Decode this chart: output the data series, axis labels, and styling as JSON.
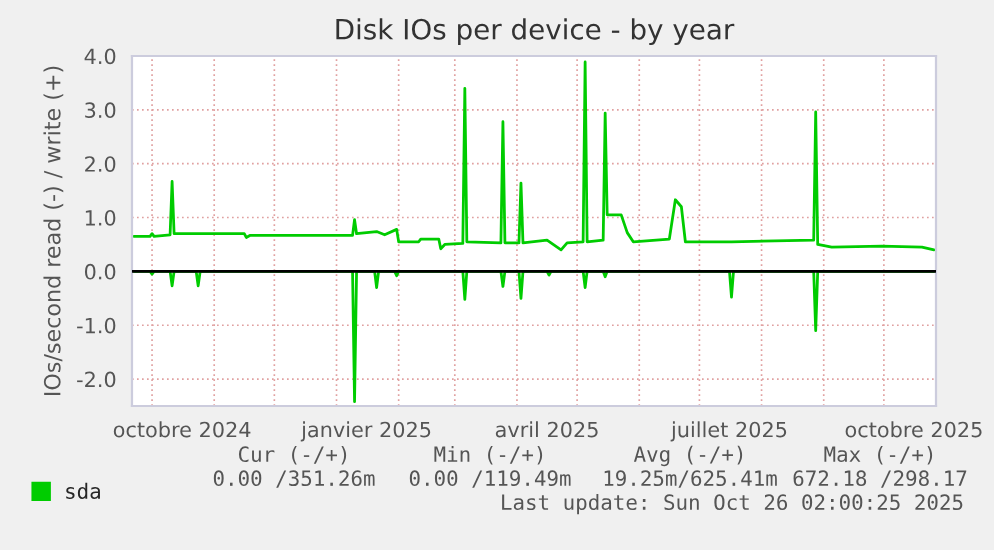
{
  "chart_data": {
    "type": "line",
    "title": "Disk IOs per device - by year",
    "ylabel": "IOs/second read (-) / write (+)",
    "xlim": [
      "2024-09-21",
      "2025-10-27"
    ],
    "ylim": [
      -2.5,
      4.0
    ],
    "yticks": [
      {
        "value": -2,
        "label": "-2.0"
      },
      {
        "value": -1,
        "label": "-1.0"
      },
      {
        "value": 0,
        "label": "0.0"
      },
      {
        "value": 1,
        "label": "1.0"
      },
      {
        "value": 2,
        "label": "2.0"
      },
      {
        "value": 3,
        "label": "3.0"
      },
      {
        "value": 4,
        "label": "4.0"
      }
    ],
    "xticks": [
      {
        "value": "2024-10-01",
        "label": null
      },
      {
        "value": "2024-10-16",
        "label": "octobre 2024"
      },
      {
        "value": "2024-11-01",
        "label": null
      },
      {
        "value": "2024-12-01",
        "label": null
      },
      {
        "value": "2025-01-01",
        "label": null
      },
      {
        "value": "2025-01-16",
        "label": "janvier 2025"
      },
      {
        "value": "2025-02-01",
        "label": null
      },
      {
        "value": "2025-03-01",
        "label": null
      },
      {
        "value": "2025-04-01",
        "label": null
      },
      {
        "value": "2025-04-16",
        "label": "avril 2025"
      },
      {
        "value": "2025-05-01",
        "label": null
      },
      {
        "value": "2025-06-01",
        "label": null
      },
      {
        "value": "2025-07-01",
        "label": null
      },
      {
        "value": "2025-07-16",
        "label": "juillet 2025"
      },
      {
        "value": "2025-08-01",
        "label": null
      },
      {
        "value": "2025-09-01",
        "label": null
      },
      {
        "value": "2025-10-01",
        "label": null
      },
      {
        "value": "2025-10-16",
        "label": "octobre 2025"
      }
    ],
    "grid": true,
    "legend": "bottom left",
    "ref_lines": [
      {
        "axis": "y",
        "value": 0,
        "color": "#000000"
      }
    ],
    "series": [
      {
        "name": "sda",
        "color": "#00cc00",
        "x": [
          "2024-09-22",
          "2024-09-30",
          "2024-10-01",
          "2024-10-02",
          "2024-10-10",
          "2024-10-11",
          "2024-10-12",
          "2024-11-16",
          "2024-11-17",
          "2024-11-19",
          "2025-01-09",
          "2025-01-10",
          "2025-01-11",
          "2025-01-21",
          "2025-01-25",
          "2025-01-31",
          "2025-02-01",
          "2025-02-11",
          "2025-02-12",
          "2025-02-21",
          "2025-02-22",
          "2025-02-24",
          "2025-03-05",
          "2025-03-06",
          "2025-03-07",
          "2025-03-24",
          "2025-03-25",
          "2025-03-26",
          "2025-04-02",
          "2025-04-03",
          "2025-04-04",
          "2025-04-16",
          "2025-04-23",
          "2025-04-26",
          "2025-05-04",
          "2025-05-05",
          "2025-05-06",
          "2025-05-14",
          "2025-05-15",
          "2025-05-16",
          "2025-05-23",
          "2025-05-26",
          "2025-05-29",
          "2025-06-16",
          "2025-06-19",
          "2025-06-22",
          "2025-06-24",
          "2025-07-17",
          "2025-08-27",
          "2025-08-28",
          "2025-08-29",
          "2025-09-05",
          "2025-09-30",
          "2025-10-20",
          "2025-10-26"
        ],
        "values": [
          0.65,
          0.65,
          0.7,
          0.65,
          0.68,
          1.67,
          0.7,
          0.7,
          0.63,
          0.67,
          0.67,
          0.96,
          0.7,
          0.74,
          0.68,
          0.78,
          0.55,
          0.55,
          0.6,
          0.6,
          0.42,
          0.5,
          0.52,
          3.4,
          0.55,
          0.53,
          2.78,
          0.53,
          0.53,
          1.64,
          0.53,
          0.58,
          0.4,
          0.53,
          0.55,
          3.89,
          0.55,
          0.58,
          2.94,
          1.05,
          1.05,
          0.72,
          0.55,
          0.6,
          1.33,
          1.2,
          0.55,
          0.55,
          0.58,
          2.96,
          0.5,
          0.45,
          0.47,
          0.45,
          0.4
        ]
      },
      {
        "color": "#00cc00",
        "x": [
          "2024-09-22",
          "2024-09-30",
          "2024-10-01",
          "2024-10-02",
          "2024-10-10",
          "2024-10-11",
          "2024-10-12",
          "2024-10-23",
          "2024-10-24",
          "2024-10-25",
          "2025-01-09",
          "2025-01-10",
          "2025-01-11",
          "2025-01-20",
          "2025-01-21",
          "2025-01-22",
          "2025-01-30",
          "2025-01-31",
          "2025-02-01",
          "2025-03-05",
          "2025-03-06",
          "2025-03-07",
          "2025-03-24",
          "2025-03-25",
          "2025-03-26",
          "2025-04-02",
          "2025-04-03",
          "2025-04-04",
          "2025-04-16",
          "2025-04-17",
          "2025-04-18",
          "2025-05-04",
          "2025-05-05",
          "2025-05-06",
          "2025-05-14",
          "2025-05-15",
          "2025-05-16",
          "2025-07-16",
          "2025-07-17",
          "2025-07-18",
          "2025-08-27",
          "2025-08-28",
          "2025-08-29",
          "2025-10-26"
        ],
        "values": [
          0,
          0,
          -0.05,
          0,
          0,
          -0.27,
          0,
          0,
          -0.27,
          0,
          0,
          -2.42,
          0,
          0,
          -0.3,
          0,
          0,
          -0.08,
          0,
          0,
          -0.52,
          0,
          0,
          -0.28,
          0,
          0,
          -0.5,
          0,
          0,
          -0.07,
          0,
          0,
          -0.3,
          0,
          0,
          -0.1,
          0,
          0,
          -0.48,
          0,
          0,
          -1.1,
          0,
          0
        ]
      }
    ],
    "annotations": [
      "Cur (-/+)",
      "Min (-/+)",
      "Avg (-/+)",
      "Max (-/+)",
      "0.00 /351.26m",
      "0.00 /119.49m",
      "19.25m/625.41m",
      "672.18 /298.17",
      "Last update: Sun Oct 26 02:00:25 2025"
    ]
  }
}
